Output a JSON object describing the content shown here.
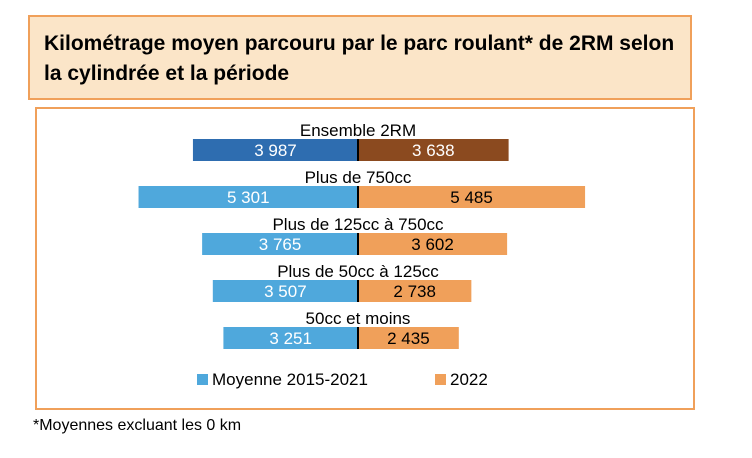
{
  "title": "Kilométrage moyen parcouru par le parc roulant* de 2RM selon la cylindrée et la période",
  "footnote": "*Moyennes excluant les 0 km",
  "colors": {
    "border": "#f0a05a",
    "title_bg": "#fbe5c8",
    "series1": "#4fa8dc",
    "series2": "#f0a05a",
    "series1_total": "#2e6db0",
    "series2_total": "#8b4a1f",
    "center_line": "#000000"
  },
  "chart_data": {
    "type": "bar",
    "orientation": "horizontal-diverging",
    "categories": [
      "Ensemble 2RM",
      "Plus de 750cc",
      "Plus de 125cc à 750cc",
      "Plus de 50cc à 125cc",
      "50cc et moins"
    ],
    "value_labels": {
      "series1": [
        "3 987",
        "5 301",
        "3 765",
        "3 507",
        "3 251"
      ],
      "series2": [
        "3 638",
        "5 485",
        "3 602",
        "2 738",
        "2 435"
      ]
    },
    "series": [
      {
        "name": "Moyenne 2015-2021",
        "values": [
          3987,
          5301,
          3765,
          3507,
          3251
        ]
      },
      {
        "name": "2022",
        "values": [
          3638,
          5485,
          3602,
          2738,
          2435
        ]
      }
    ],
    "xlim": [
      -6000,
      6000
    ],
    "legend_position": "bottom",
    "grid": false
  }
}
